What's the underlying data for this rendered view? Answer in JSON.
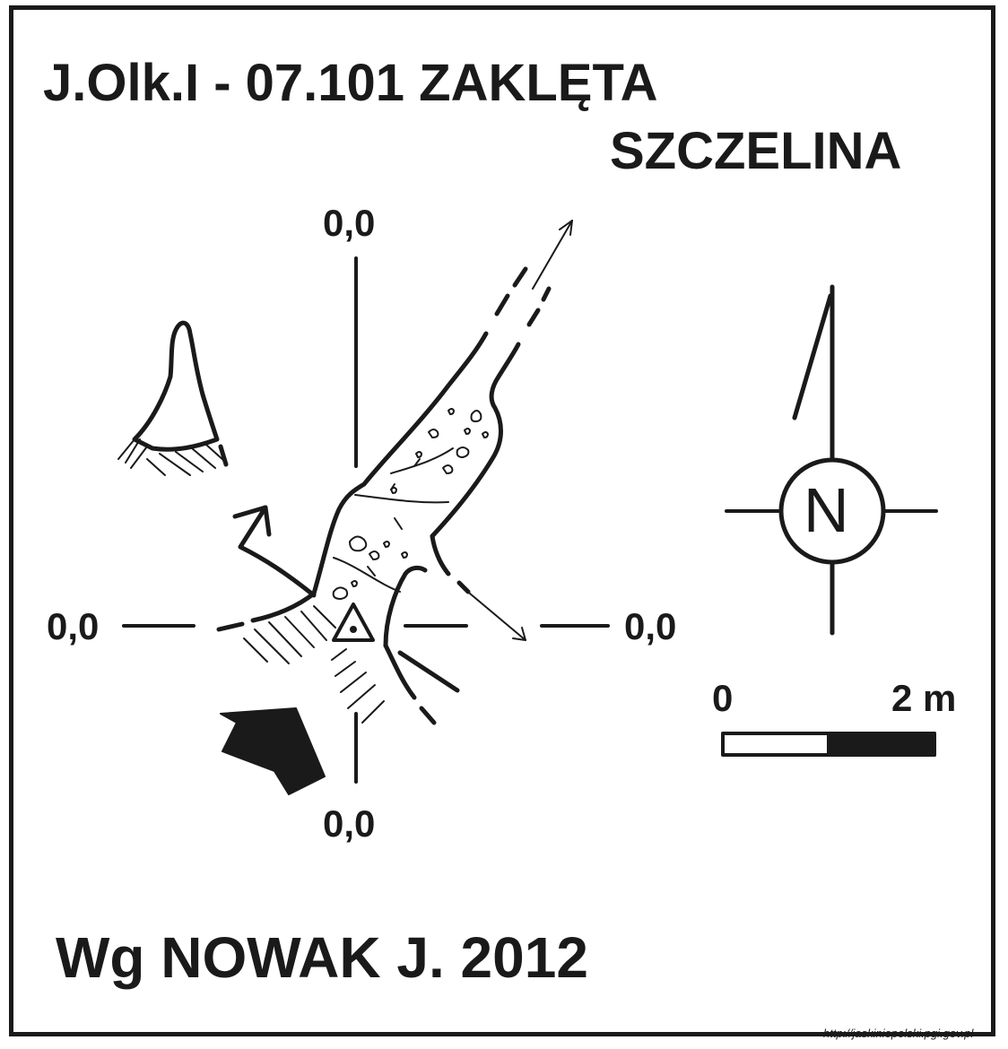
{
  "title": {
    "line1": "J.Olk.I - 07.101  ZAKLĘTA",
    "line2": "SZCZELINA"
  },
  "author": "Wg NOWAK J. 2012",
  "coordinates": {
    "top": "0,0",
    "left": "0,0",
    "right": "0,0",
    "bottom": "0,0"
  },
  "north_arrow": {
    "label": "N"
  },
  "scale_bar": {
    "start_label": "0",
    "end_label": "2 m"
  },
  "source_url": "http://jaskiniepolski.pgi.gov.pl",
  "colors": {
    "ink": "#1a1a1a",
    "paper": "#ffffff"
  },
  "icons": [
    "entrance-arrow-icon",
    "datum-triangle-icon",
    "north-arrow-icon",
    "compass-circle-icon"
  ]
}
